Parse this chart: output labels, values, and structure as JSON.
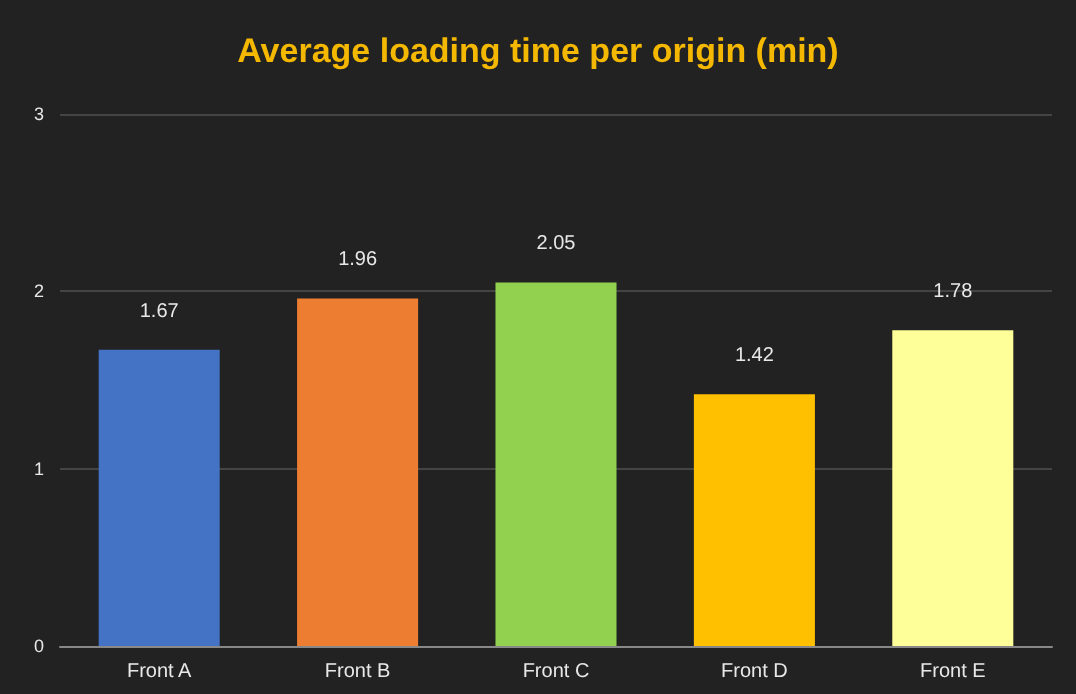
{
  "chart_data": {
    "type": "bar",
    "title": "Average loading time per origin (min)",
    "categories": [
      "Front A",
      "Front B",
      "Front C",
      "Front D",
      "Front E"
    ],
    "values": [
      1.67,
      1.96,
      2.05,
      1.42,
      1.78
    ],
    "colors": [
      "#4472c4",
      "#ed7d31",
      "#92d050",
      "#ffc000",
      "#ffff99"
    ],
    "ylim": [
      0,
      3
    ],
    "yticks": [
      0,
      1,
      2,
      3
    ],
    "grid": "y",
    "data_labels": true
  }
}
